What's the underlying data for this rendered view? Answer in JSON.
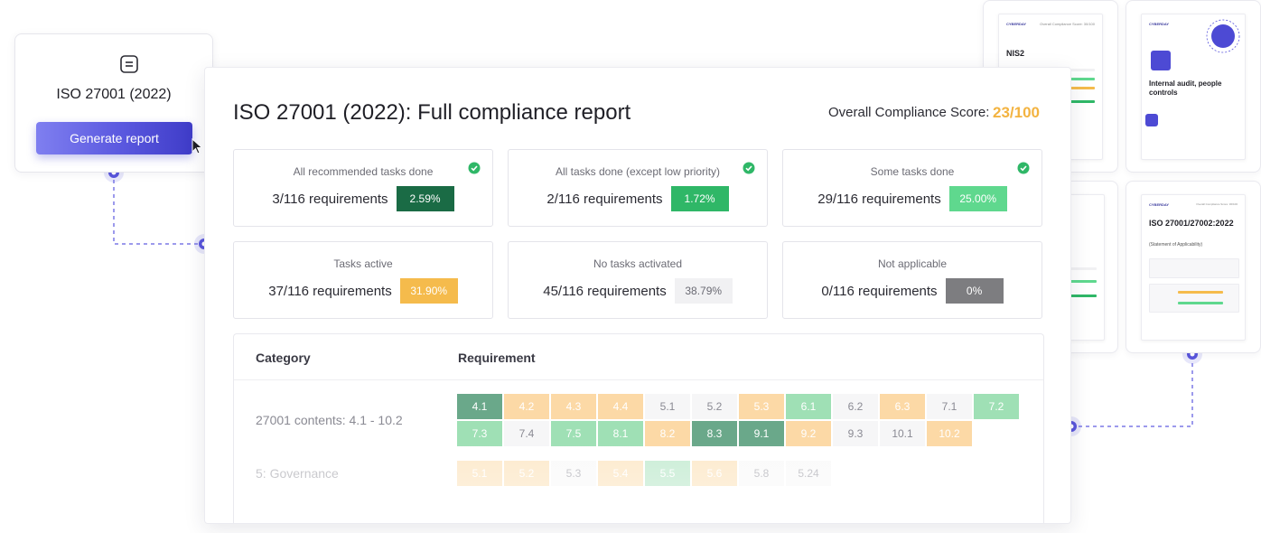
{
  "generator": {
    "icon": "document-icon",
    "title": "ISO 27001 (2022)",
    "button_label": "Generate report"
  },
  "report": {
    "title": "ISO 27001 (2022): Full compliance report",
    "score_label": "Overall Compliance Score:",
    "score_value": "23/100",
    "score_color": "#f3b340",
    "stats": [
      {
        "label": "All recommended tasks done",
        "count": "3/116 requirements",
        "percent": "2.59%",
        "checked": true,
        "bg": "#1a6b45",
        "fg": "#ffffff"
      },
      {
        "label": "All  tasks done (except low priority)",
        "count": "2/116 requirements",
        "percent": "1.72%",
        "checked": true,
        "bg": "#2fb767",
        "fg": "#ffffff"
      },
      {
        "label": "Some tasks done",
        "count": "29/116 requirements",
        "percent": "25.00%",
        "checked": true,
        "bg": "#5fd88e",
        "fg": "#ffffff"
      },
      {
        "label": "Tasks active",
        "count": "37/116 requirements",
        "percent": "31.90%",
        "checked": false,
        "bg": "#f5bb4c",
        "fg": "#ffffff"
      },
      {
        "label": "No tasks activated",
        "count": "45/116 requirements",
        "percent": "38.79%",
        "checked": false,
        "bg": "#f1f1f3",
        "fg": "#6b6b74"
      },
      {
        "label": "Not applicable",
        "count": "0/116 requirements",
        "percent": "0%",
        "checked": false,
        "bg": "#7d7d80",
        "fg": "#ffffff"
      }
    ],
    "table": {
      "headers": {
        "category": "Category",
        "requirement": "Requirement"
      },
      "rows": [
        {
          "category": "27001 contents: 4.1 - 10.2",
          "cells": [
            {
              "label": "4.1",
              "status": "done"
            },
            {
              "label": "4.2",
              "status": "active"
            },
            {
              "label": "4.3",
              "status": "active"
            },
            {
              "label": "4.4",
              "status": "active"
            },
            {
              "label": "5.1",
              "status": "none"
            },
            {
              "label": "5.2",
              "status": "none"
            },
            {
              "label": "5.3",
              "status": "active"
            },
            {
              "label": "6.1",
              "status": "some"
            },
            {
              "label": "6.2",
              "status": "none"
            },
            {
              "label": "6.3",
              "status": "active"
            },
            {
              "label": "7.1",
              "status": "none"
            },
            {
              "label": "7.2",
              "status": "some"
            },
            {
              "label": "7.3",
              "status": "some"
            },
            {
              "label": "7.4",
              "status": "none"
            },
            {
              "label": "7.5",
              "status": "some"
            },
            {
              "label": "8.1",
              "status": "some"
            },
            {
              "label": "8.2",
              "status": "active"
            },
            {
              "label": "8.3",
              "status": "done"
            },
            {
              "label": "9.1",
              "status": "done"
            },
            {
              "label": "9.2",
              "status": "active"
            },
            {
              "label": "9.3",
              "status": "none"
            },
            {
              "label": "10.1",
              "status": "none"
            },
            {
              "label": "10.2",
              "status": "active"
            }
          ]
        },
        {
          "category": "5: Governance",
          "cells": [
            {
              "label": "5.1",
              "status": "active"
            },
            {
              "label": "5.2",
              "status": "active"
            },
            {
              "label": "5.3",
              "status": "none"
            },
            {
              "label": "5.4",
              "status": "active"
            },
            {
              "label": "5.5",
              "status": "some"
            },
            {
              "label": "5.6",
              "status": "active"
            },
            {
              "label": "5.8",
              "status": "none"
            },
            {
              "label": "5.24",
              "status": "none"
            }
          ]
        }
      ]
    }
  },
  "status_colors": {
    "done": {
      "bg": "#6aa88a",
      "fg": "#ffffff"
    },
    "some": {
      "bg": "#9fe0b5",
      "fg": "#ffffff"
    },
    "active": {
      "bg": "#fcd9a6",
      "fg": "#ffffff"
    },
    "none": {
      "bg": "#f6f6f7",
      "fg": "#8a8a93"
    }
  },
  "thumbnails": [
    {
      "brand": "CYBERDAY",
      "score": "Overall Compliance Score: 30/100",
      "heading": "NIS2",
      "sub": ""
    },
    {
      "brand": "CYBERDAY",
      "score": "",
      "heading": "Internal audit, people controls",
      "sub": ""
    },
    {
      "brand": "",
      "score": "",
      "heading": "",
      "sub": ""
    },
    {
      "brand": "CYBERDAY",
      "score": "Overall Compliance Score: 30/100",
      "heading": "ISO 27001/27002:2022",
      "sub": "(Statement of Applicability)"
    }
  ]
}
